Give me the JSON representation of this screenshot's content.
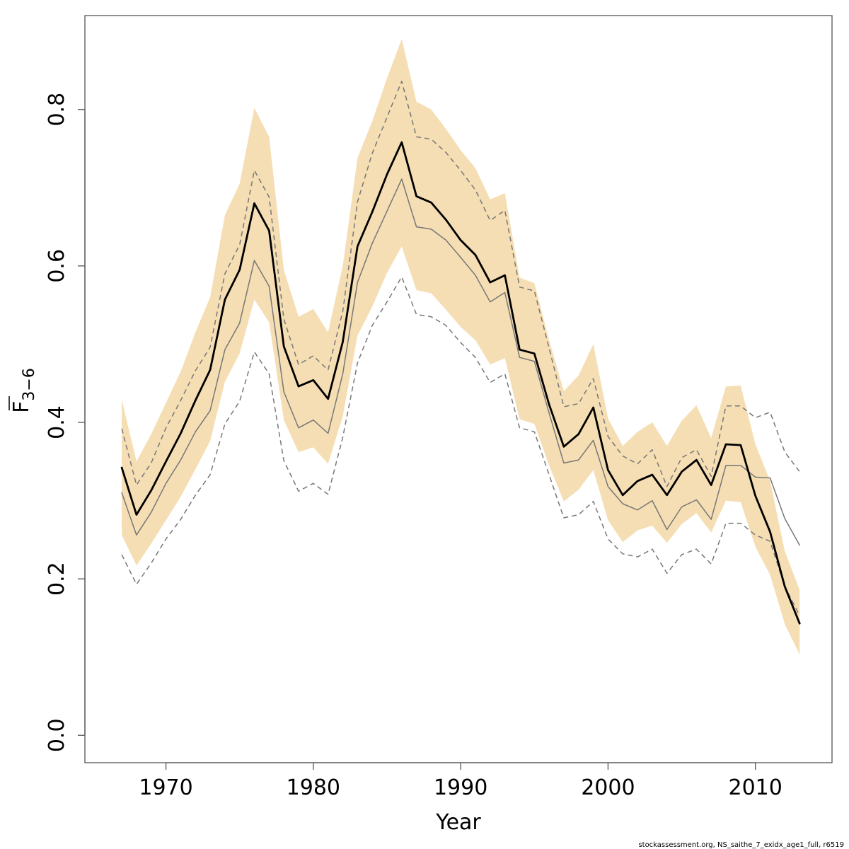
{
  "chart_data": {
    "type": "line",
    "title": "",
    "xlabel": "Year",
    "ylabel_main": "F",
    "ylabel_sub": "3−6",
    "xlim": [
      1964.5,
      2015.2
    ],
    "ylim": [
      -0.035,
      0.92
    ],
    "x_ticks": [
      1970,
      1980,
      1990,
      2000,
      2010
    ],
    "y_ticks": [
      0.0,
      0.2,
      0.4,
      0.6,
      0.8
    ],
    "x_tick_labels": [
      "1970",
      "1980",
      "1990",
      "2000",
      "2010"
    ],
    "y_tick_labels": [
      "0.0",
      "0.2",
      "0.4",
      "0.6",
      "0.8"
    ],
    "x": [
      1967,
      1968,
      1969,
      1970,
      1971,
      1972,
      1973,
      1974,
      1975,
      1976,
      1977,
      1978,
      1979,
      1980,
      1981,
      1982,
      1983,
      1984,
      1985,
      1986,
      1987,
      1988,
      1989,
      1990,
      1991,
      1992,
      1993,
      1994,
      1995,
      1996,
      1997,
      1998,
      1999,
      2000,
      2001,
      2002,
      2003,
      2004,
      2005,
      2006,
      2007,
      2008,
      2009,
      2010,
      2011,
      2012,
      2013
    ],
    "band": {
      "name": "Confidence band",
      "color": "#f5deb3",
      "upper": [
        0.429,
        0.35,
        0.385,
        0.425,
        0.465,
        0.515,
        0.56,
        0.665,
        0.705,
        0.802,
        0.765,
        0.595,
        0.535,
        0.545,
        0.515,
        0.6,
        0.738,
        0.785,
        0.84,
        0.89,
        0.81,
        0.8,
        0.775,
        0.748,
        0.725,
        0.685,
        0.693,
        0.585,
        0.578,
        0.505,
        0.44,
        0.46,
        0.5,
        0.405,
        0.37,
        0.388,
        0.4,
        0.37,
        0.402,
        0.422,
        0.38,
        0.446,
        0.447,
        0.372,
        0.325,
        0.235,
        0.186
      ],
      "lower": [
        0.256,
        0.217,
        0.245,
        0.275,
        0.305,
        0.34,
        0.376,
        0.452,
        0.488,
        0.557,
        0.528,
        0.403,
        0.362,
        0.368,
        0.347,
        0.408,
        0.511,
        0.548,
        0.591,
        0.625,
        0.569,
        0.565,
        0.544,
        0.522,
        0.505,
        0.474,
        0.482,
        0.404,
        0.398,
        0.345,
        0.299,
        0.314,
        0.339,
        0.275,
        0.247,
        0.262,
        0.268,
        0.246,
        0.27,
        0.284,
        0.259,
        0.3,
        0.298,
        0.241,
        0.205,
        0.142,
        0.103
      ]
    },
    "series": [
      {
        "name": "Estimate",
        "color": "#000000",
        "style": "solid-thick",
        "values": [
          0.342,
          0.282,
          0.313,
          0.35,
          0.386,
          0.428,
          0.467,
          0.557,
          0.595,
          0.68,
          0.645,
          0.497,
          0.446,
          0.454,
          0.43,
          0.503,
          0.625,
          0.669,
          0.717,
          0.758,
          0.689,
          0.681,
          0.659,
          0.633,
          0.614,
          0.579,
          0.588,
          0.493,
          0.488,
          0.423,
          0.369,
          0.385,
          0.419,
          0.339,
          0.307,
          0.325,
          0.333,
          0.307,
          0.337,
          0.352,
          0.32,
          0.372,
          0.371,
          0.306,
          0.26,
          0.19,
          0.143
        ]
      },
      {
        "name": "Previous estimate",
        "color": "#777777",
        "style": "solid-thin",
        "values": [
          0.31,
          0.256,
          0.285,
          0.322,
          0.352,
          0.388,
          0.415,
          0.493,
          0.527,
          0.607,
          0.574,
          0.439,
          0.393,
          0.403,
          0.386,
          0.462,
          0.579,
          0.629,
          0.67,
          0.711,
          0.65,
          0.647,
          0.633,
          0.611,
          0.588,
          0.554,
          0.566,
          0.483,
          0.478,
          0.412,
          0.348,
          0.352,
          0.377,
          0.318,
          0.296,
          0.288,
          0.3,
          0.263,
          0.292,
          0.301,
          0.276,
          0.345,
          0.345,
          0.33,
          0.329,
          0.277,
          0.243
        ]
      },
      {
        "name": "Previous upper",
        "color": "#777777",
        "style": "dashed",
        "values": [
          0.392,
          0.32,
          0.348,
          0.393,
          0.428,
          0.466,
          0.496,
          0.59,
          0.627,
          0.722,
          0.688,
          0.532,
          0.474,
          0.485,
          0.467,
          0.542,
          0.682,
          0.744,
          0.79,
          0.836,
          0.765,
          0.762,
          0.745,
          0.722,
          0.697,
          0.658,
          0.671,
          0.573,
          0.568,
          0.495,
          0.42,
          0.424,
          0.456,
          0.382,
          0.357,
          0.347,
          0.365,
          0.318,
          0.355,
          0.365,
          0.331,
          0.421,
          0.421,
          0.406,
          0.413,
          0.362,
          0.337
        ]
      },
      {
        "name": "Previous lower",
        "color": "#777777",
        "style": "dashed",
        "values": [
          0.231,
          0.193,
          0.22,
          0.251,
          0.276,
          0.307,
          0.333,
          0.398,
          0.427,
          0.49,
          0.462,
          0.351,
          0.312,
          0.322,
          0.308,
          0.381,
          0.476,
          0.524,
          0.554,
          0.586,
          0.538,
          0.535,
          0.524,
          0.502,
          0.483,
          0.451,
          0.462,
          0.393,
          0.388,
          0.333,
          0.278,
          0.282,
          0.299,
          0.251,
          0.232,
          0.228,
          0.238,
          0.207,
          0.231,
          0.238,
          0.219,
          0.271,
          0.271,
          0.256,
          0.248,
          0.19,
          0.153
        ]
      }
    ],
    "footer": "stockassessment.org, NS_saithe_7_exidx_age1_full, r6519"
  }
}
